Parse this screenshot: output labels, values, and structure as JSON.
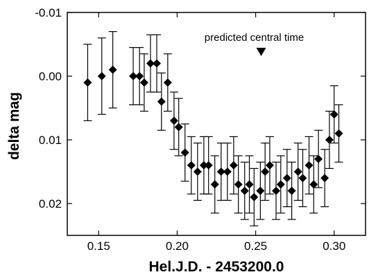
{
  "chart_data": {
    "type": "scatter",
    "title": "",
    "xlabel": "Hel.J.D. - 2453200.0",
    "ylabel": "delta mag",
    "xlim": [
      0.13,
      0.32
    ],
    "ylim": [
      -0.01,
      0.025
    ],
    "y_inverted": true,
    "grid": false,
    "marker": "diamond",
    "marker_color": "#000000",
    "x_ticks": [
      0.15,
      0.2,
      0.25,
      0.3
    ],
    "x_tick_labels": [
      "0.15",
      "0.20",
      "0.25",
      "0.30"
    ],
    "y_ticks": [
      -0.01,
      0.0,
      0.01,
      0.02
    ],
    "y_tick_labels": [
      "-0.01",
      "0.00",
      "0.01",
      "0.02"
    ],
    "annotation": {
      "text": "predicted central time",
      "symbol": "down-triangle",
      "x": 0.2535,
      "y": -0.0038
    },
    "points": [
      {
        "x": 0.143,
        "y": 0.001,
        "err": 0.006
      },
      {
        "x": 0.152,
        "y": 0.0,
        "err": 0.006
      },
      {
        "x": 0.159,
        "y": -0.001,
        "err": 0.006
      },
      {
        "x": 0.172,
        "y": 0.0,
        "err": 0.0045
      },
      {
        "x": 0.176,
        "y": 0.0,
        "err": 0.0045
      },
      {
        "x": 0.179,
        "y": 0.001,
        "err": 0.0045
      },
      {
        "x": 0.183,
        "y": -0.002,
        "err": 0.0045
      },
      {
        "x": 0.187,
        "y": -0.002,
        "err": 0.0045
      },
      {
        "x": 0.19,
        "y": 0.004,
        "err": 0.0045
      },
      {
        "x": 0.194,
        "y": 0.001,
        "err": 0.0045
      },
      {
        "x": 0.198,
        "y": 0.007,
        "err": 0.0045
      },
      {
        "x": 0.201,
        "y": 0.008,
        "err": 0.0045
      },
      {
        "x": 0.205,
        "y": 0.012,
        "err": 0.0045
      },
      {
        "x": 0.209,
        "y": 0.014,
        "err": 0.0045
      },
      {
        "x": 0.213,
        "y": 0.015,
        "err": 0.0045
      },
      {
        "x": 0.217,
        "y": 0.014,
        "err": 0.0045
      },
      {
        "x": 0.22,
        "y": 0.014,
        "err": 0.0045
      },
      {
        "x": 0.224,
        "y": 0.017,
        "err": 0.0045
      },
      {
        "x": 0.228,
        "y": 0.015,
        "err": 0.0045
      },
      {
        "x": 0.232,
        "y": 0.015,
        "err": 0.0045
      },
      {
        "x": 0.236,
        "y": 0.014,
        "err": 0.0045
      },
      {
        "x": 0.239,
        "y": 0.017,
        "err": 0.0045
      },
      {
        "x": 0.243,
        "y": 0.018,
        "err": 0.0045
      },
      {
        "x": 0.246,
        "y": 0.017,
        "err": 0.0045
      },
      {
        "x": 0.249,
        "y": 0.019,
        "err": 0.0045
      },
      {
        "x": 0.253,
        "y": 0.018,
        "err": 0.0045
      },
      {
        "x": 0.256,
        "y": 0.015,
        "err": 0.0045
      },
      {
        "x": 0.259,
        "y": 0.014,
        "err": 0.0045
      },
      {
        "x": 0.263,
        "y": 0.018,
        "err": 0.0045
      },
      {
        "x": 0.266,
        "y": 0.017,
        "err": 0.0045
      },
      {
        "x": 0.27,
        "y": 0.016,
        "err": 0.0045
      },
      {
        "x": 0.273,
        "y": 0.018,
        "err": 0.0045
      },
      {
        "x": 0.277,
        "y": 0.015,
        "err": 0.0045
      },
      {
        "x": 0.28,
        "y": 0.016,
        "err": 0.0045
      },
      {
        "x": 0.284,
        "y": 0.014,
        "err": 0.0045
      },
      {
        "x": 0.287,
        "y": 0.017,
        "err": 0.0045
      },
      {
        "x": 0.29,
        "y": 0.013,
        "err": 0.0045
      },
      {
        "x": 0.294,
        "y": 0.016,
        "err": 0.0045
      },
      {
        "x": 0.297,
        "y": 0.01,
        "err": 0.0045
      },
      {
        "x": 0.3,
        "y": 0.006,
        "err": 0.0045
      },
      {
        "x": 0.303,
        "y": 0.009,
        "err": 0.0045
      }
    ]
  }
}
